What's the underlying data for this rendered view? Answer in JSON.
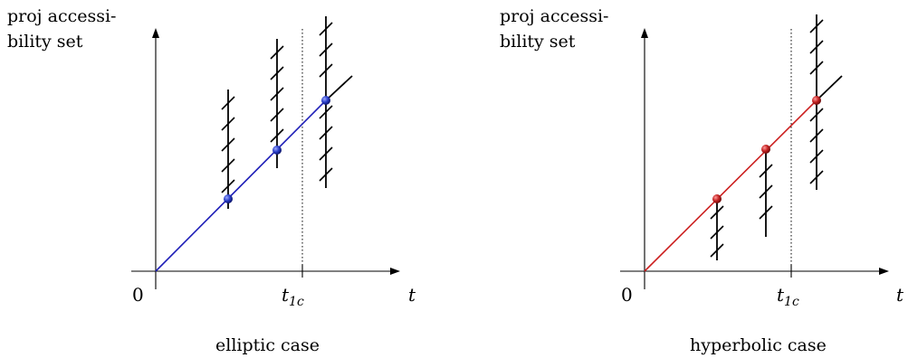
{
  "panels": [
    {
      "caption": "elliptic case",
      "y_axis_label_line1": "proj accessi-",
      "y_axis_label_line2": "bility set",
      "origin_label": "0",
      "t1c_label_main": "t",
      "t1c_label_sub": "1c",
      "x_axis_label": "t",
      "line_color": "#2020b8",
      "point_color": "#1f2fb5"
    },
    {
      "caption": "hyperbolic case",
      "y_axis_label_line1": "proj accessi-",
      "y_axis_label_line2": "bility set",
      "origin_label": "0",
      "t1c_label_main": "t",
      "t1c_label_sub": "1c",
      "x_axis_label": "t",
      "line_color": "#cc2020",
      "point_color": "#b01818"
    }
  ]
}
